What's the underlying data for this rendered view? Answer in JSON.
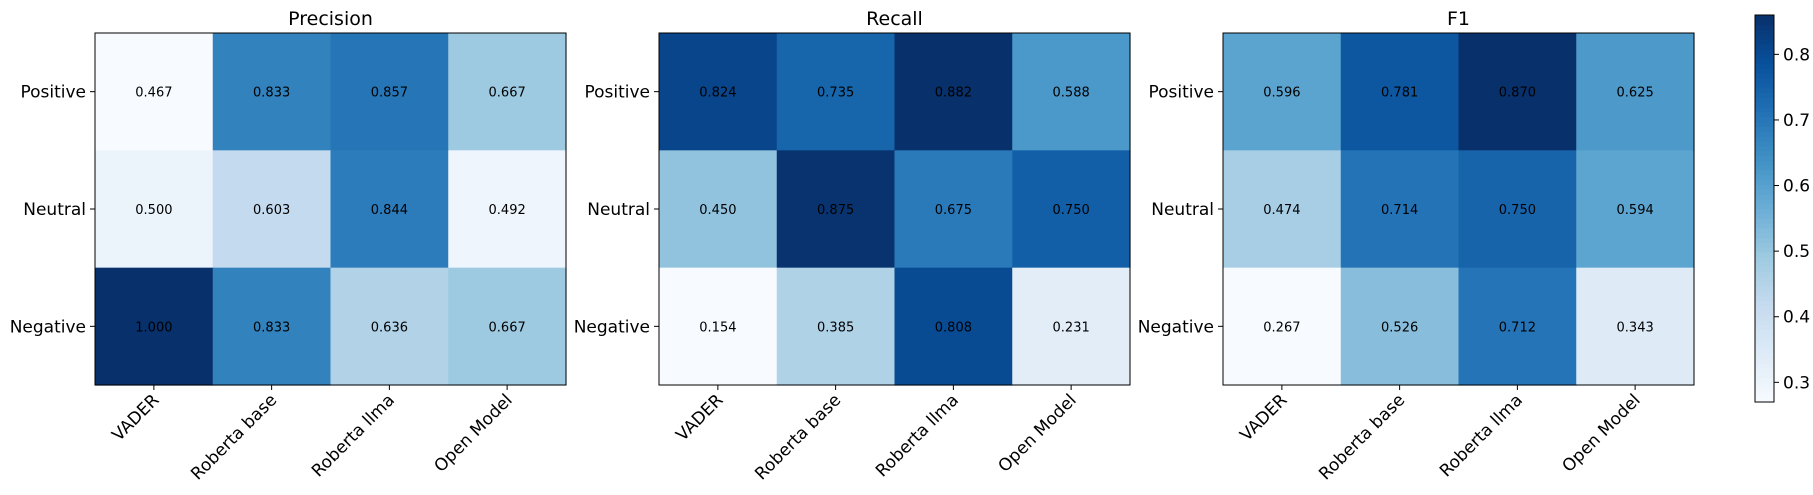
{
  "chart_data": [
    {
      "type": "heatmap",
      "title": "Precision",
      "xlabel": "",
      "ylabel": "",
      "x_categories": [
        "VADER",
        "Roberta base",
        "Roberta llma",
        "Open Model"
      ],
      "y_categories": [
        "Positive",
        "Neutral",
        "Negative"
      ],
      "values": [
        [
          0.467,
          0.833,
          0.857,
          0.667
        ],
        [
          0.5,
          0.603,
          0.844,
          0.492
        ],
        [
          1.0,
          0.833,
          0.636,
          0.667
        ]
      ],
      "value_labels": [
        [
          "0.467",
          "0.833",
          "0.857",
          "0.667"
        ],
        [
          "0.500",
          "0.603",
          "0.844",
          "0.492"
        ],
        [
          "1.000",
          "0.833",
          "0.636",
          "0.667"
        ]
      ]
    },
    {
      "type": "heatmap",
      "title": "Recall",
      "xlabel": "",
      "ylabel": "",
      "x_categories": [
        "VADER",
        "Roberta base",
        "Roberta llma",
        "Open Model"
      ],
      "y_categories": [
        "Positive",
        "Neutral",
        "Negative"
      ],
      "values": [
        [
          0.824,
          0.735,
          0.882,
          0.588
        ],
        [
          0.45,
          0.875,
          0.675,
          0.75
        ],
        [
          0.154,
          0.385,
          0.808,
          0.231
        ]
      ],
      "value_labels": [
        [
          "0.824",
          "0.735",
          "0.882",
          "0.588"
        ],
        [
          "0.450",
          "0.875",
          "0.675",
          "0.750"
        ],
        [
          "0.154",
          "0.385",
          "0.808",
          "0.231"
        ]
      ]
    },
    {
      "type": "heatmap",
      "title": "F1",
      "xlabel": "",
      "ylabel": "",
      "x_categories": [
        "VADER",
        "Roberta base",
        "Roberta llma",
        "Open Model"
      ],
      "y_categories": [
        "Positive",
        "Neutral",
        "Negative"
      ],
      "values": [
        [
          0.596,
          0.781,
          0.87,
          0.625
        ],
        [
          0.474,
          0.714,
          0.75,
          0.594
        ],
        [
          0.267,
          0.526,
          0.712,
          0.343
        ]
      ],
      "value_labels": [
        [
          "0.596",
          "0.781",
          "0.870",
          "0.625"
        ],
        [
          "0.474",
          "0.714",
          "0.750",
          "0.594"
        ],
        [
          "0.267",
          "0.526",
          "0.712",
          "0.343"
        ]
      ]
    }
  ],
  "colorbar": {
    "colormap": "Blues",
    "range": [
      0.27,
      0.86
    ],
    "ticks": [
      0.3,
      0.4,
      0.5,
      0.6,
      0.7,
      0.8
    ],
    "tick_labels": [
      "0.3",
      "0.4",
      "0.5",
      "0.6",
      "0.7",
      "0.8"
    ]
  }
}
